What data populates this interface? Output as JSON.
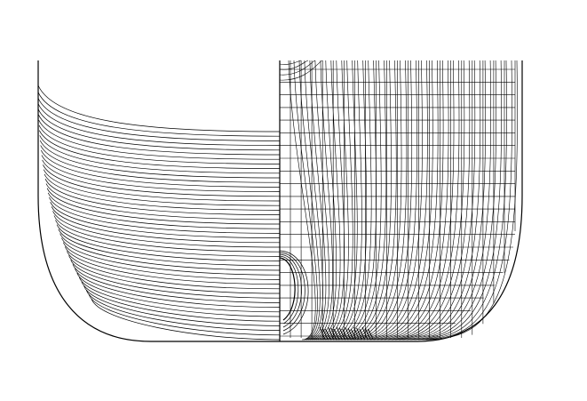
{
  "diagram": {
    "kind": "hull-lines-plan",
    "background_color": "#ffffff",
    "stroke_color": "#000000",
    "left_half": {
      "content": "waterlines",
      "line_count": 46
    },
    "right_half": {
      "content": "station-sections-with-grid",
      "section_curve_count": 44,
      "grid_vertical_count": 22,
      "grid_horizontal_count": 22
    }
  }
}
